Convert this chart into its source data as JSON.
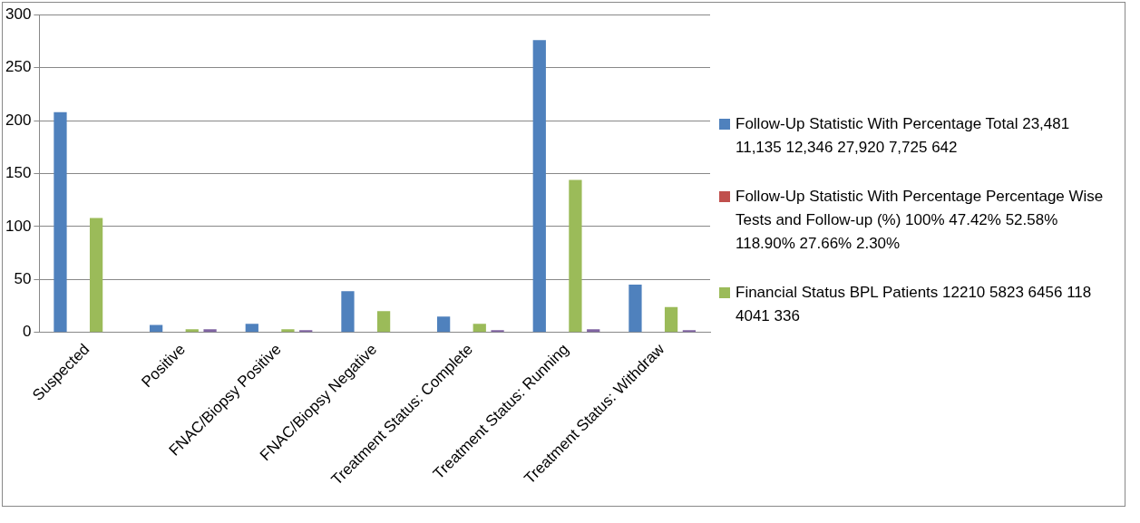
{
  "chart_data": {
    "type": "bar",
    "categories": [
      "Suspected",
      "Positive",
      "FNAC/Biopsy Positive",
      "FNAC/Biopsy Negative",
      "Treatment Status: Complete",
      "Treatment Status: Running",
      "Treatment Status: Withdraw"
    ],
    "series": [
      {
        "name": "Follow-Up Statistic With Percentage  Total 23,481 11,135 12,346 27,920 7,725 642",
        "color": "#4f81bd",
        "values": [
          208,
          7,
          8,
          39,
          15,
          276,
          45
        ]
      },
      {
        "name": "Follow-Up Statistic With Percentage  Percentage Wise Tests and Follow-up (%) 100% 47.42% 52.58% 118.90% 27.66% 2.30%",
        "color": "#c0504d",
        "values": [
          0,
          0,
          0,
          0,
          0,
          0,
          0
        ]
      },
      {
        "name": "Financial Status BPL Patients 12210 5823 6456 118 4041 336",
        "color": "#9bbb59",
        "values": [
          108,
          3,
          3,
          20,
          8,
          144,
          24
        ]
      },
      {
        "color": "#8064a2",
        "values": [
          0,
          3,
          2,
          0,
          2,
          3,
          2
        ]
      }
    ],
    "ylim": [
      0,
      300
    ],
    "yticks": [
      0,
      50,
      100,
      150,
      200,
      250,
      300
    ],
    "grid": "y",
    "legend": "right"
  }
}
